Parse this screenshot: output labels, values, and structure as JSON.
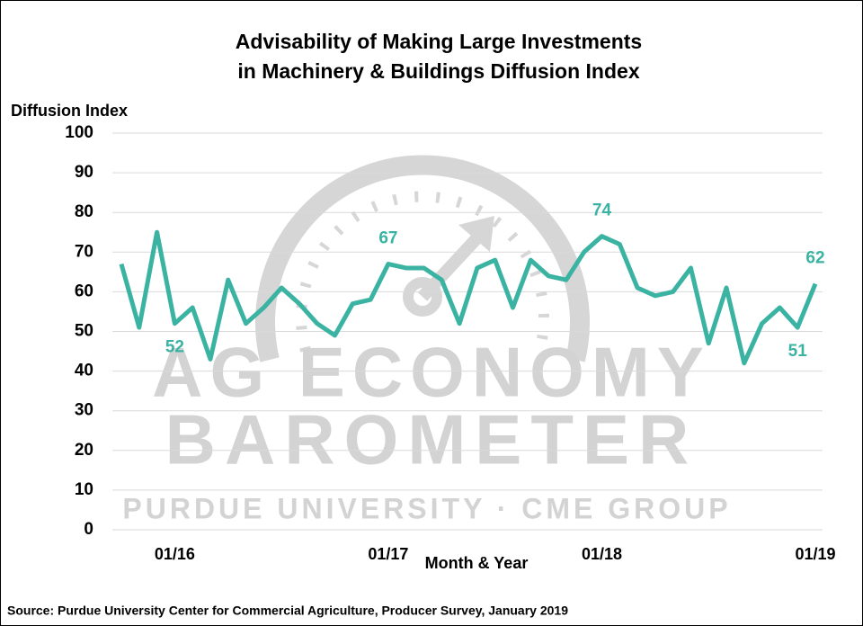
{
  "chart_data": {
    "type": "line",
    "title": [
      "Advisability of Making Large Investments",
      "in Machinery & Buildings Diffusion Index"
    ],
    "y_label": "Diffusion Index",
    "x_label": "Month & Year",
    "source": "Source: Purdue University Center for Commercial Agriculture, Producer Survey, January 2019",
    "watermark": [
      "AG ECONOMY",
      "BAROMETER",
      "PURDUE UNIVERSITY  ·  CME GROUP"
    ],
    "categories": [
      null,
      null,
      null,
      "01/16",
      null,
      null,
      null,
      null,
      null,
      null,
      null,
      null,
      null,
      null,
      null,
      "01/17",
      null,
      null,
      null,
      null,
      null,
      null,
      null,
      null,
      null,
      null,
      null,
      "01/18",
      null,
      null,
      null,
      null,
      null,
      null,
      null,
      null,
      null,
      null,
      null,
      "01/19"
    ],
    "series": [
      {
        "color": "#3bb3a2",
        "values": [
          67,
          51,
          75,
          52,
          56,
          43,
          63,
          52,
          56,
          61,
          57,
          52,
          49,
          57,
          58,
          67,
          66,
          66,
          63,
          52,
          66,
          68,
          56,
          68,
          64,
          63,
          70,
          74,
          72,
          61,
          59,
          60,
          66,
          47,
          61,
          42,
          52,
          56,
          51,
          62
        ],
        "value_labels": [
          null,
          null,
          null,
          "52",
          null,
          null,
          null,
          null,
          null,
          null,
          null,
          null,
          null,
          null,
          null,
          "67",
          null,
          null,
          null,
          null,
          null,
          null,
          null,
          null,
          null,
          null,
          null,
          "74",
          null,
          null,
          null,
          null,
          null,
          null,
          null,
          null,
          null,
          null,
          "51",
          "62"
        ]
      }
    ],
    "ylim": [
      0,
      100
    ],
    "yticks": [
      0,
      10,
      20,
      30,
      40,
      50,
      60,
      70,
      80,
      90,
      100
    ],
    "grid": true
  }
}
